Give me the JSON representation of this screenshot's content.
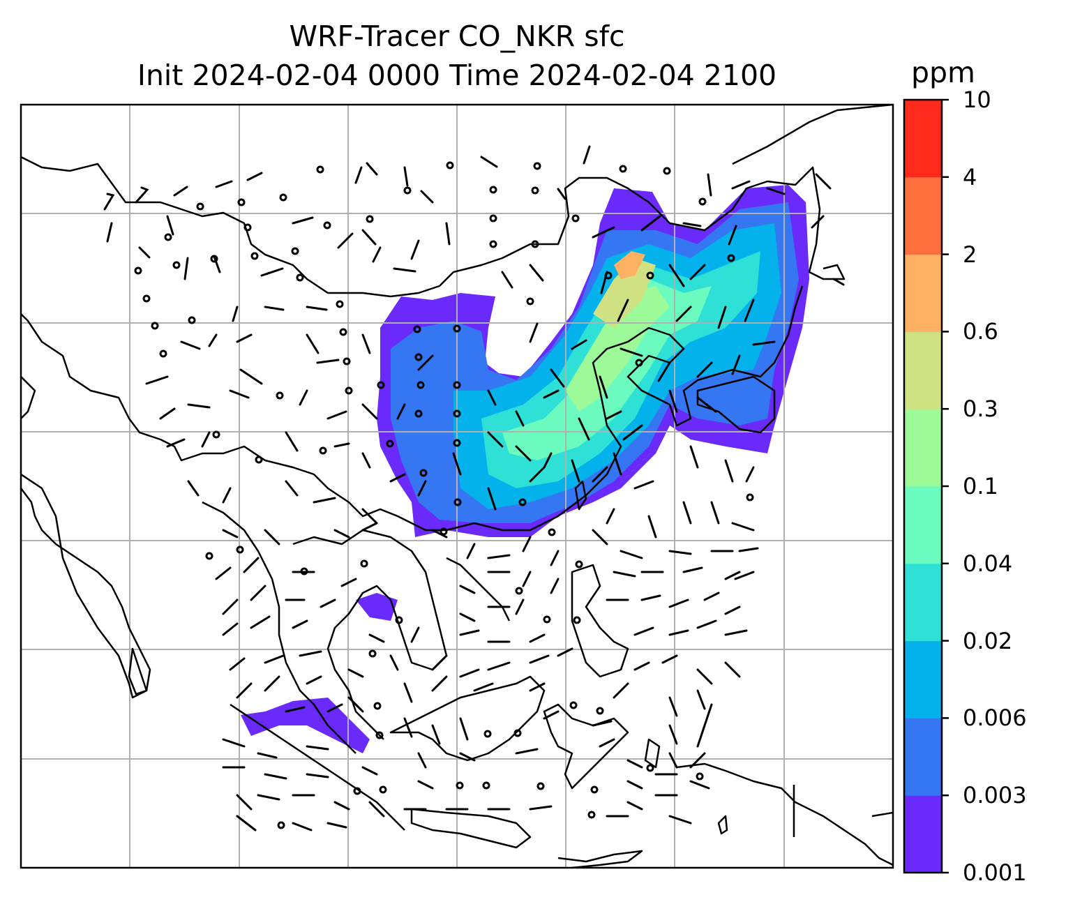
{
  "title": {
    "line1": "WRF-Tracer CO_NKR sfc",
    "line2": "Init 2024-02-04 0000 Time 2024-02-04 2100"
  },
  "colorbar": {
    "unit": "ppm",
    "levels": [
      "0.001",
      "0.003",
      "0.006",
      "0.02",
      "0.04",
      "0.1",
      "0.3",
      "0.6",
      "2",
      "4",
      "10"
    ],
    "colors": [
      "#6a2bfa",
      "#3576f3",
      "#03b2ea",
      "#2ee0d6",
      "#6cfbbe",
      "#9cfa98",
      "#cfe182",
      "#feb063",
      "#ff6f3e",
      "#ff2a1b"
    ]
  },
  "map": {
    "grid": true,
    "overlay": "wind barbs",
    "coastline_color": "#000000",
    "grid_color": "#b0b0b0"
  }
}
